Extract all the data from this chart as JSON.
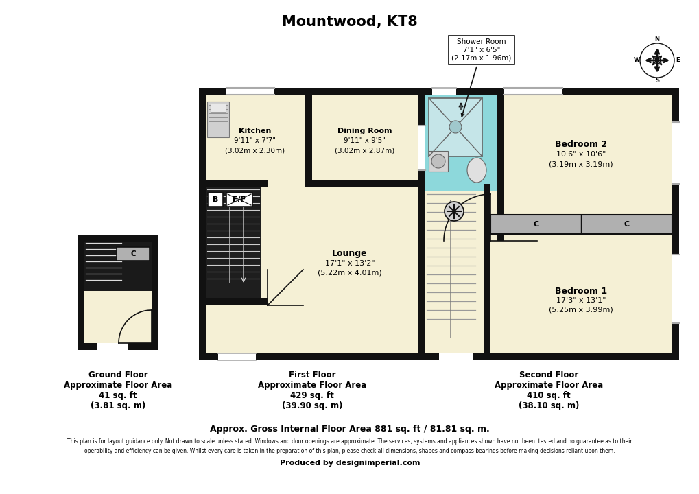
{
  "title": "Mountwood, KT8",
  "bg": "#ffffff",
  "wc": "#111111",
  "cream": "#f5f0d5",
  "blue": "#8dd8db",
  "grey": "#b0b0b0",
  "ground_floor_text": "Ground Floor\nApproximate Floor Area\n41 sq. ft\n(3.81 sq. m)",
  "first_floor_text": "First Floor\nApproximate Floor Area\n429 sq. ft\n(39.90 sq. m)",
  "second_floor_text": "Second Floor\nApproximate Floor Area\n410 sq. ft\n(38.10 sq. m)",
  "footer_bold": "Approx. Gross Internal Floor Area 881 sq. ft / 81.81 sq. m.",
  "footer_s1": "This plan is for layout guidance only. Not drawn to scale unless stated. Windows and door openings are approximate. The services, systems and appliances shown have not been  tested and no guarantee as to their",
  "footer_s2": "operability and efficiency can be given. Whilst every care is taken in the preparation of this plan, please check all dimensions, shapes and compass bearings before making decisions reliant upon them.",
  "footer_prod": "Produced by designimperial.com",
  "shower_callout": "Shower Room\n7'1\" x 6'5\"\n(2.17m x 1.96m)",
  "kitchen_label": "Kitchen\n9'11\" x 7'7\"\n(3.02m x 2.30m)",
  "dining_label": "Dining Room\n9'11\" x 9'5\"\n(3.02m x 2.87m)",
  "lounge_label": "Lounge\n17'1\" x 13'2\"\n(5.22m x 4.01m)",
  "bed2_label": "Bedroom 2\n10'6\" x 10'6\"\n(3.19m x 3.19m)",
  "bed1_label": "Bedroom 1\n17'3\" x 13'1\"\n(5.25m x 3.99m)"
}
